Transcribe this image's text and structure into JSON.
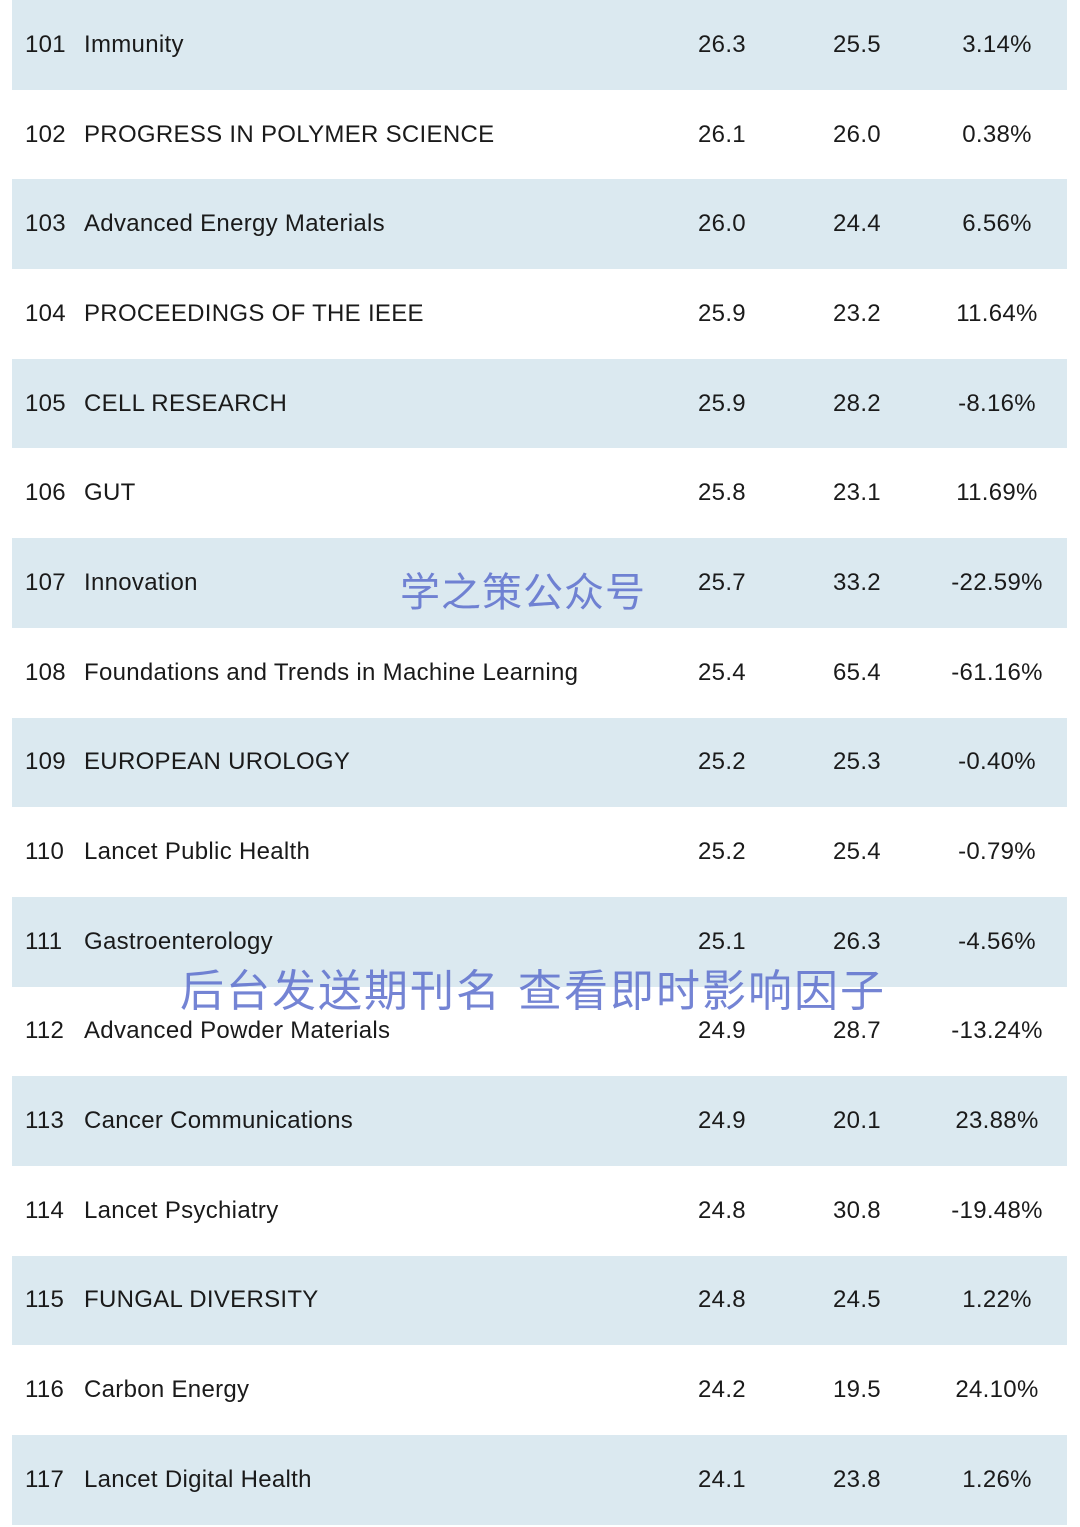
{
  "rows": [
    {
      "rank": "101",
      "name": "Immunity",
      "v1": "26.3",
      "v2": "25.5",
      "pct": "3.14%"
    },
    {
      "rank": "102",
      "name": "PROGRESS IN POLYMER SCIENCE",
      "v1": "26.1",
      "v2": "26.0",
      "pct": "0.38%"
    },
    {
      "rank": "103",
      "name": "Advanced Energy Materials",
      "v1": "26.0",
      "v2": "24.4",
      "pct": "6.56%"
    },
    {
      "rank": "104",
      "name": "PROCEEDINGS OF THE IEEE",
      "v1": "25.9",
      "v2": "23.2",
      "pct": "11.64%"
    },
    {
      "rank": "105",
      "name": "CELL RESEARCH",
      "v1": "25.9",
      "v2": "28.2",
      "pct": "-8.16%"
    },
    {
      "rank": "106",
      "name": "GUT",
      "v1": "25.8",
      "v2": "23.1",
      "pct": "11.69%"
    },
    {
      "rank": "107",
      "name": "Innovation",
      "v1": "25.7",
      "v2": "33.2",
      "pct": "-22.59%"
    },
    {
      "rank": "108",
      "name": "Foundations and Trends in Machine Learning",
      "v1": "25.4",
      "v2": "65.4",
      "pct": "-61.16%"
    },
    {
      "rank": "109",
      "name": "EUROPEAN UROLOGY",
      "v1": "25.2",
      "v2": "25.3",
      "pct": "-0.40%"
    },
    {
      "rank": "110",
      "name": "Lancet Public Health",
      "v1": "25.2",
      "v2": "25.4",
      "pct": "-0.79%"
    },
    {
      "rank": "111",
      "name": "Gastroenterology",
      "v1": "25.1",
      "v2": "26.3",
      "pct": "-4.56%"
    },
    {
      "rank": "112",
      "name": "Advanced Powder Materials",
      "v1": "24.9",
      "v2": "28.7",
      "pct": "-13.24%"
    },
    {
      "rank": "113",
      "name": "Cancer Communications",
      "v1": "24.9",
      "v2": "20.1",
      "pct": "23.88%"
    },
    {
      "rank": "114",
      "name": "Lancet Psychiatry",
      "v1": "24.8",
      "v2": "30.8",
      "pct": "-19.48%"
    },
    {
      "rank": "115",
      "name": "FUNGAL DIVERSITY",
      "v1": "24.8",
      "v2": "24.5",
      "pct": "1.22%"
    },
    {
      "rank": "116",
      "name": "Carbon Energy",
      "v1": "24.2",
      "v2": "19.5",
      "pct": "24.10%"
    },
    {
      "rank": "117",
      "name": "Lancet Digital Health",
      "v1": "24.1",
      "v2": "23.8",
      "pct": "1.26%"
    }
  ],
  "watermarks": {
    "primary": "学之策公众号",
    "secondary": "后台发送期刊名 查看即时影响因子"
  },
  "colors": {
    "row_shaded": "#dbe9f0",
    "row_plain": "#ffffff",
    "text": "#1a1a1a",
    "watermark": "#5c6ecd"
  }
}
